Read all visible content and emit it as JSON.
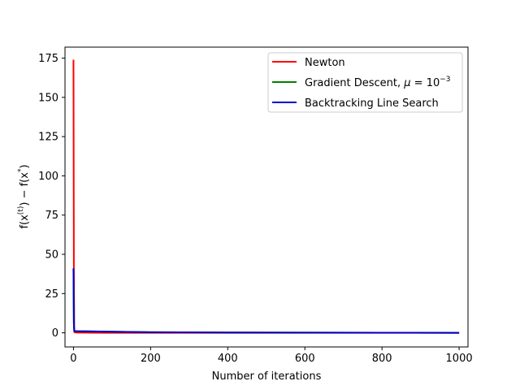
{
  "chart_data": {
    "type": "line",
    "title": "",
    "xlabel": "Number of iterations",
    "ylabel": "f(x(t)) − f(x*)",
    "xlim": [
      -22,
      1023
    ],
    "ylim": [
      -9,
      182
    ],
    "xticks": [
      0,
      200,
      400,
      600,
      800,
      1000
    ],
    "yticks": [
      0,
      25,
      50,
      75,
      100,
      125,
      150,
      175
    ],
    "xtick_labels": [
      "0",
      "200",
      "400",
      "600",
      "800",
      "1000"
    ],
    "ytick_labels": [
      "0",
      "25",
      "50",
      "75",
      "100",
      "125",
      "150",
      "175"
    ],
    "grid": false,
    "legend_position": "top-right",
    "series": [
      {
        "name": "Newton",
        "color": "#ff0000",
        "x": [
          0,
          1,
          2,
          3,
          5,
          10,
          50,
          100,
          200,
          500,
          1000
        ],
        "y": [
          174,
          40,
          0.5,
          0.3,
          0.2,
          0.1,
          0.05,
          0,
          0,
          0,
          0
        ]
      },
      {
        "name": "Gradient Descent, μ = 10^-3",
        "color": "#008000",
        "x": [
          0,
          1,
          2,
          5,
          10,
          50,
          100,
          200,
          400,
          600,
          800,
          1000
        ],
        "y": [
          41,
          6,
          1.2,
          1.1,
          1.0,
          0.9,
          0.7,
          0.4,
          0.2,
          0.1,
          0.05,
          0.02
        ]
      },
      {
        "name": "Backtracking Line Search",
        "color": "#0000cd",
        "x": [
          0,
          1,
          2,
          5,
          10,
          50,
          100,
          200,
          400,
          600,
          800,
          1000
        ],
        "y": [
          41,
          6,
          1.2,
          1.1,
          1.0,
          0.9,
          0.7,
          0.4,
          0.2,
          0.1,
          0.05,
          0.02
        ]
      }
    ]
  }
}
